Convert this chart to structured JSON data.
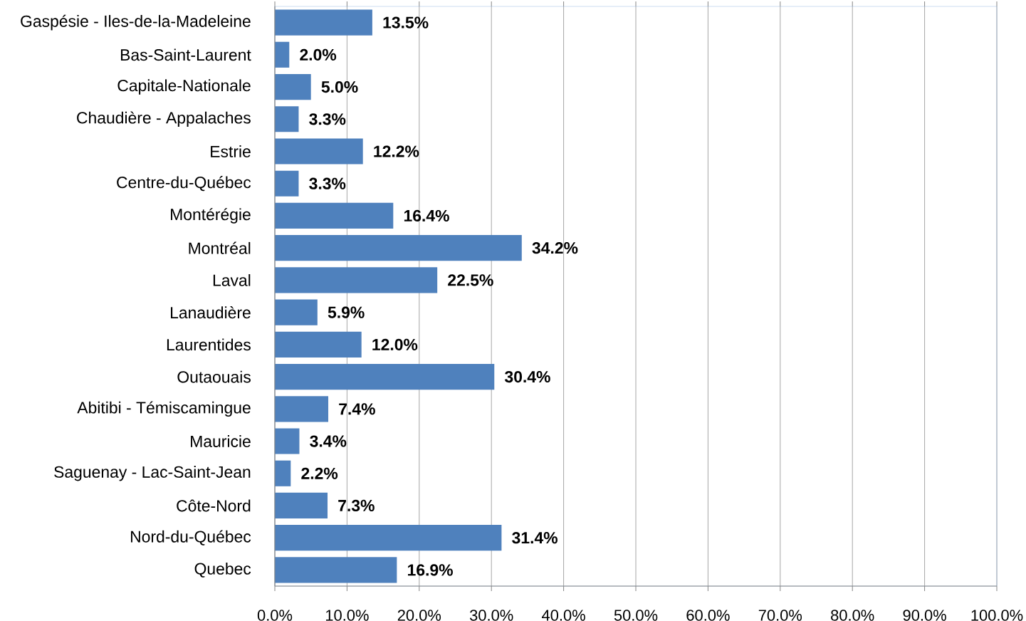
{
  "chart_data": {
    "type": "bar",
    "orientation": "horizontal",
    "categories": [
      "Gaspésie - Iles-de-la-Madeleine",
      "Bas-Saint-Laurent",
      "Capitale-Nationale",
      "Chaudière - Appalaches",
      "Estrie",
      "Centre-du-Québec",
      "Montérégie",
      "Montréal",
      "Laval",
      "Lanaudière",
      "Laurentides",
      "Outaouais",
      "Abitibi - Témiscamingue",
      "Mauricie",
      "Saguenay - Lac-Saint-Jean",
      "Côte-Nord",
      "Nord-du-Québec",
      "Quebec"
    ],
    "values": [
      13.5,
      2.0,
      5.0,
      3.3,
      12.2,
      3.3,
      16.4,
      34.2,
      22.5,
      5.9,
      12.0,
      30.4,
      7.4,
      3.4,
      2.2,
      7.3,
      31.4,
      16.9
    ],
    "value_labels": [
      "13.5%",
      "2.0%",
      "5.0%",
      "3.3%",
      "12.2%",
      "3.3%",
      "16.4%",
      "34.2%",
      "22.5%",
      "5.9%",
      "12.0%",
      "30.4%",
      "7.4%",
      "3.4%",
      "2.2%",
      "7.3%",
      "31.4%",
      "16.9%"
    ],
    "color": "#4f81bd",
    "xlim": [
      0,
      100
    ],
    "xticks": [
      {
        "value": 0,
        "label": "0.0%"
      },
      {
        "value": 10,
        "label": "10.0%"
      },
      {
        "value": 20,
        "label": "20.0%"
      },
      {
        "value": 30,
        "label": "30.0%"
      },
      {
        "value": 40,
        "label": "40.0%"
      },
      {
        "value": 50,
        "label": "50.0%"
      },
      {
        "value": 60,
        "label": "60.0%"
      },
      {
        "value": 70,
        "label": "70.0%"
      },
      {
        "value": 80,
        "label": "80.0%"
      },
      {
        "value": 90,
        "label": "90.0%"
      },
      {
        "value": 100,
        "label": "100.0%"
      }
    ],
    "grid": "x"
  }
}
